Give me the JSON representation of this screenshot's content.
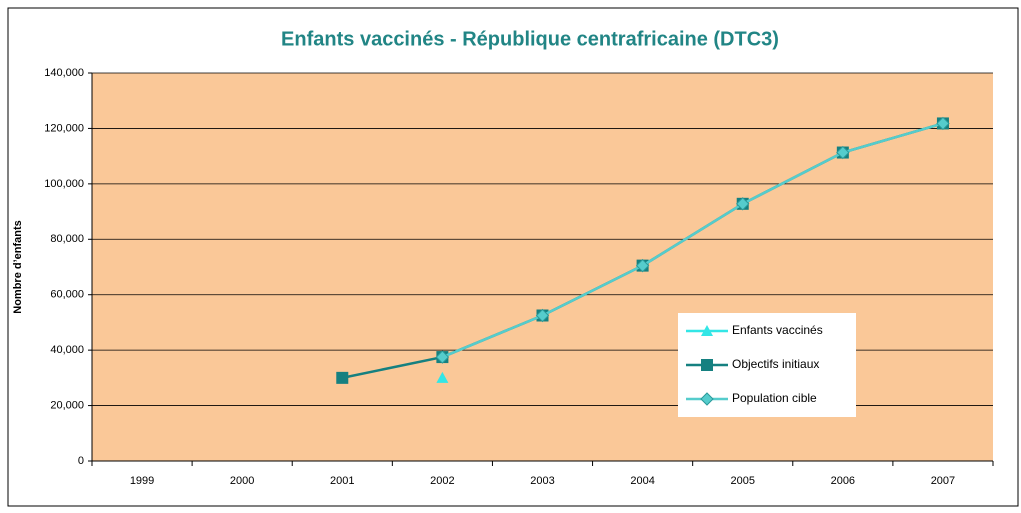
{
  "chart_data": {
    "type": "line",
    "title": "Enfants vaccinés - République centrafricaine (DTC3)",
    "ylabel": "Nombre d’enfants",
    "categories": [
      "1999",
      "2000",
      "2001",
      "2002",
      "2003",
      "2004",
      "2005",
      "2006",
      "2007"
    ],
    "series": [
      {
        "name": "Enfants vaccinés",
        "color": "#33e6e6",
        "marker": "triangle",
        "values": [
          null,
          null,
          null,
          30000,
          null,
          null,
          null,
          null,
          null
        ]
      },
      {
        "name": "Objectifs initiaux",
        "color": "#158080",
        "marker": "square",
        "values": [
          null,
          null,
          30000,
          37500,
          52500,
          70500,
          92800,
          111300,
          121800
        ]
      },
      {
        "name": "Population cible",
        "color": "#55cccc",
        "marker": "diamond",
        "values": [
          null,
          null,
          null,
          37500,
          52500,
          70500,
          92800,
          111300,
          121800
        ]
      }
    ],
    "ylim": [
      0,
      140000
    ],
    "yticks": [
      0,
      {
        "value": 20000,
        "label": "20,000"
      },
      {
        "value": 40000,
        "label": "40,000"
      },
      {
        "value": 60000,
        "label": "60,000"
      },
      {
        "value": 80000,
        "label": "80,000"
      },
      {
        "value": 100000,
        "label": "100,000"
      },
      {
        "value": 120000,
        "label": "120,000"
      },
      {
        "value": 140000,
        "label": "140,000"
      }
    ],
    "grid": true,
    "background": "#fac898"
  }
}
